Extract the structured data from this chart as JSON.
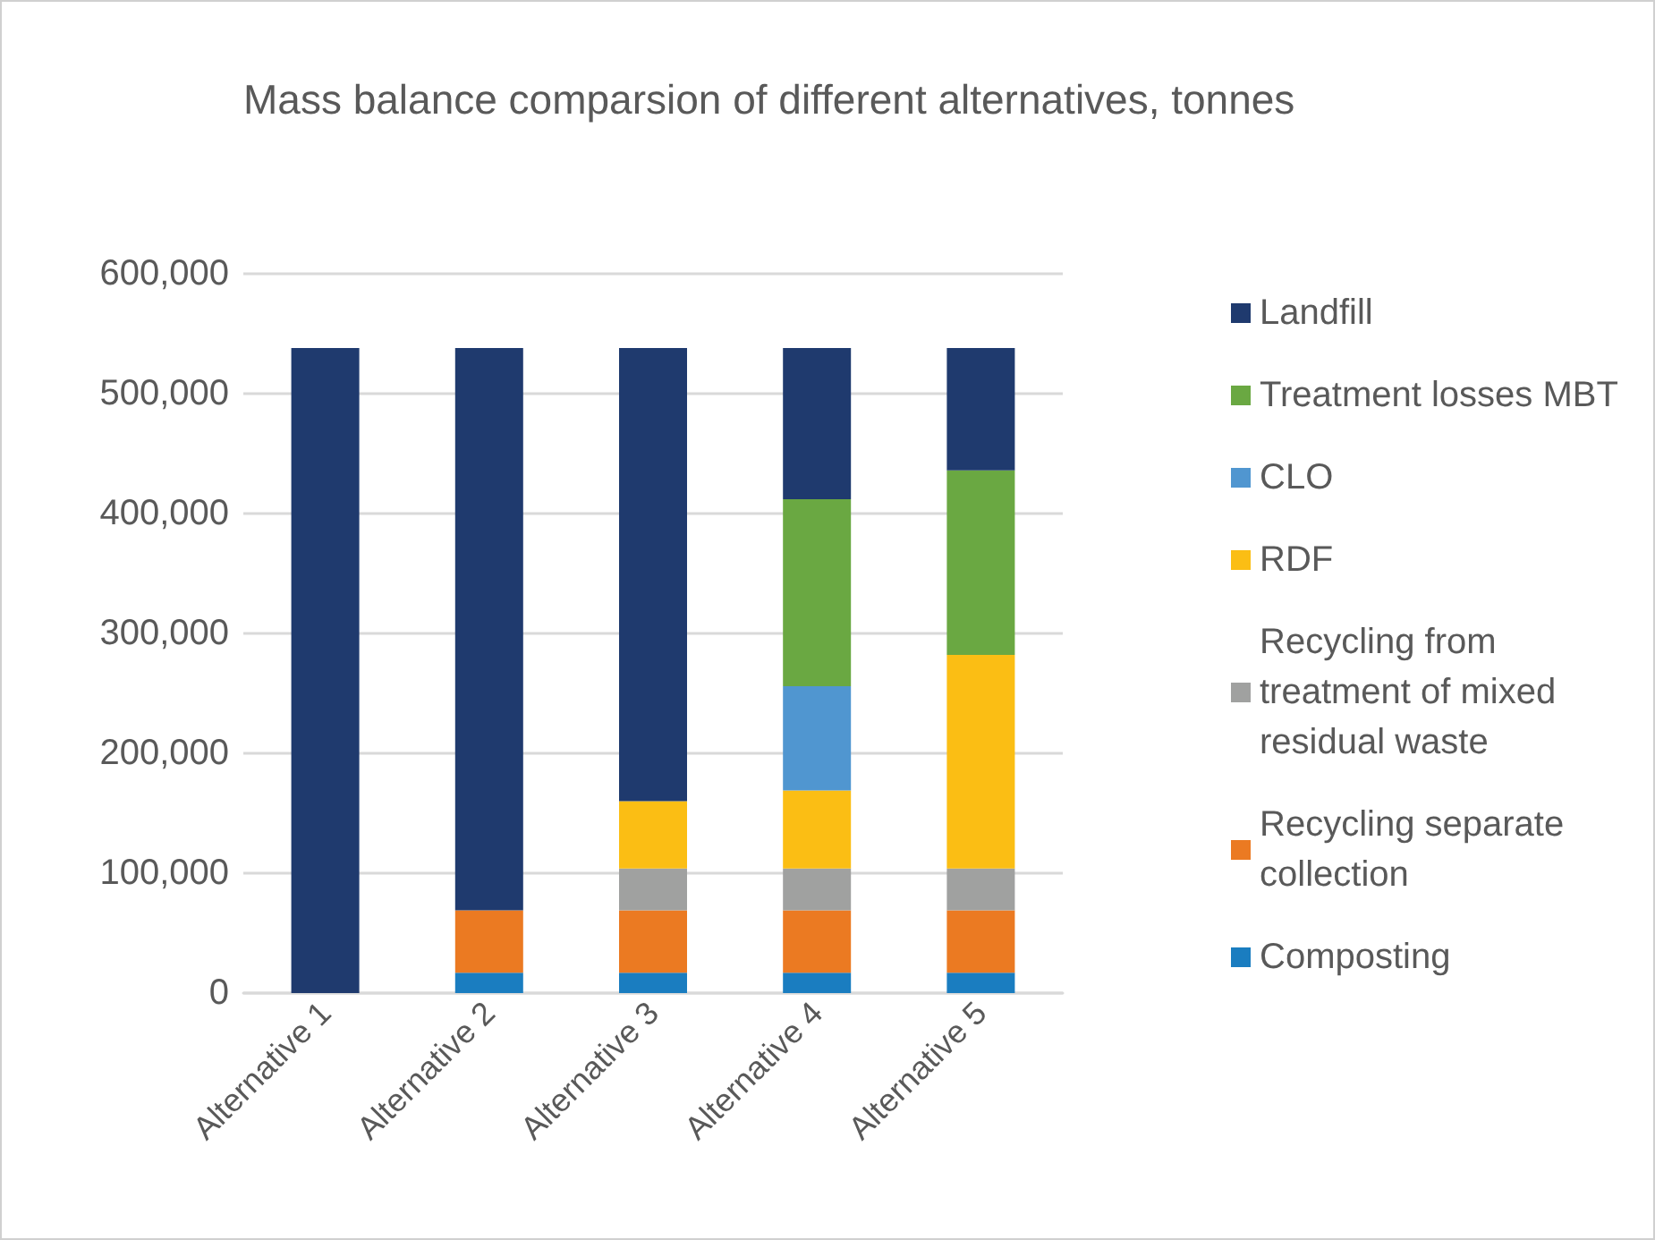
{
  "chart_data": {
    "type": "bar",
    "title": "Mass balance comparsion of different alternatives, tonnes",
    "categories": [
      "Alternative 1",
      "Alternative 2",
      "Alternative 3",
      "Alternative 4",
      "Alternative 5"
    ],
    "stacked": true,
    "series": [
      {
        "name": "Composting",
        "color": "#1a7dc0",
        "values": [
          0,
          17000,
          17000,
          17000,
          17000
        ]
      },
      {
        "name": "Recycling separate collection",
        "color": "#eb7a22",
        "values": [
          0,
          52000,
          52000,
          52000,
          52000
        ]
      },
      {
        "name": "Recycling from treatment of mixed residual waste",
        "color": "#a0a1a0",
        "values": [
          0,
          0,
          35000,
          35000,
          35000
        ]
      },
      {
        "name": "RDF",
        "color": "#fbbe14",
        "values": [
          0,
          0,
          56000,
          65000,
          178000
        ]
      },
      {
        "name": "CLO",
        "color": "#5096d0",
        "values": [
          0,
          0,
          0,
          87000,
          0
        ]
      },
      {
        "name": "Treatment losses MBT",
        "color": "#6aa842",
        "values": [
          0,
          0,
          0,
          156000,
          154000
        ]
      },
      {
        "name": "Landfill",
        "color": "#1f3a6e",
        "values": [
          538000,
          469000,
          378000,
          126000,
          102000
        ]
      }
    ],
    "ylim": [
      0,
      600000
    ],
    "yticks": [
      0,
      {
        "value": 100000,
        "label": "100,000"
      },
      {
        "value": 200000,
        "label": "200,000"
      },
      {
        "value": 300000,
        "label": "300,000"
      },
      {
        "value": 400000,
        "label": "400,000"
      },
      {
        "value": 500000,
        "label": "500,000"
      },
      {
        "value": 600000,
        "label": "600,000"
      }
    ],
    "grid": "y",
    "legend": "right"
  }
}
